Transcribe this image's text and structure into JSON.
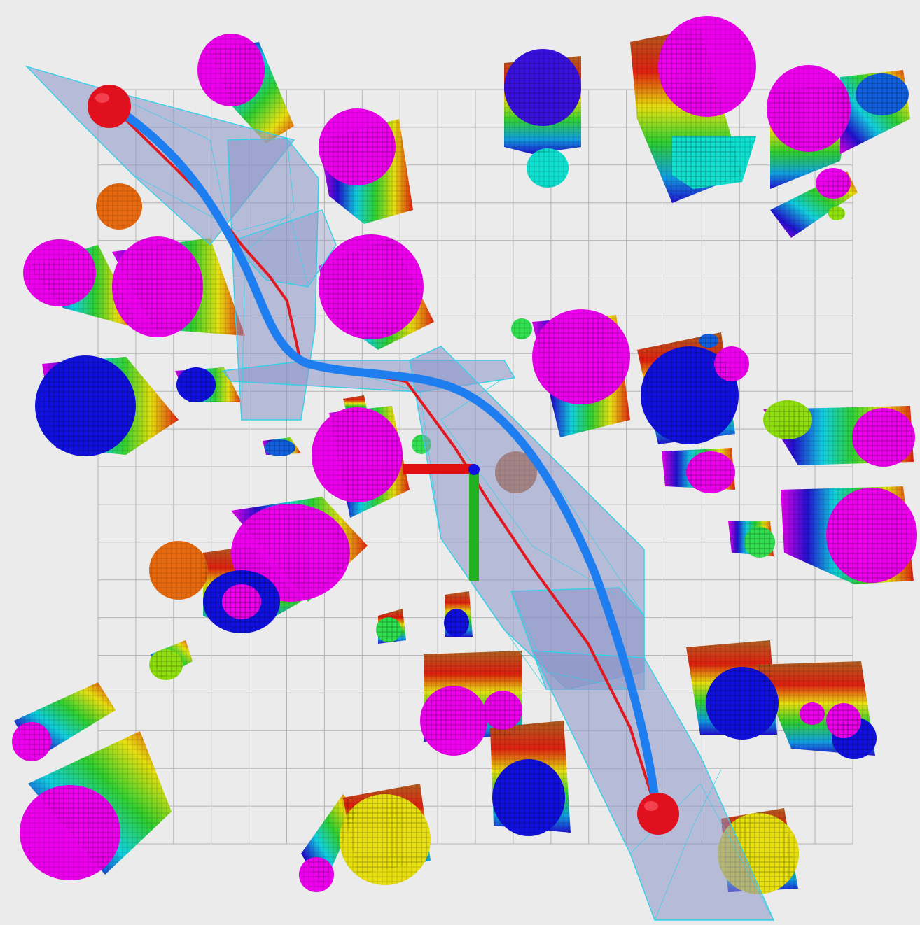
{
  "scene": {
    "kind": "3d-voxel-trajectory-view",
    "background_color": "#ebebeb",
    "grid_color": "#b4b4b4",
    "corridor_fill": "#8a94c8",
    "corridor_edge": "#33d0e8",
    "trajectory_color": "#1e7ef0",
    "reference_path_color": "#e01820",
    "endpoint_color": "#e0101e",
    "axes": {
      "x_color": "#e01010",
      "y_color": "#20b020",
      "z_color": "#1010e0"
    },
    "obstacle_palette": {
      "magenta": "#ee00ee",
      "blue": "#1010e0",
      "violet": "#3a10e0",
      "cyan": "#10e0d0",
      "orange": "#e86a10",
      "green": "#30e050",
      "lime": "#90e010",
      "yellow": "#e8e010",
      "brown": "#c07030"
    }
  }
}
